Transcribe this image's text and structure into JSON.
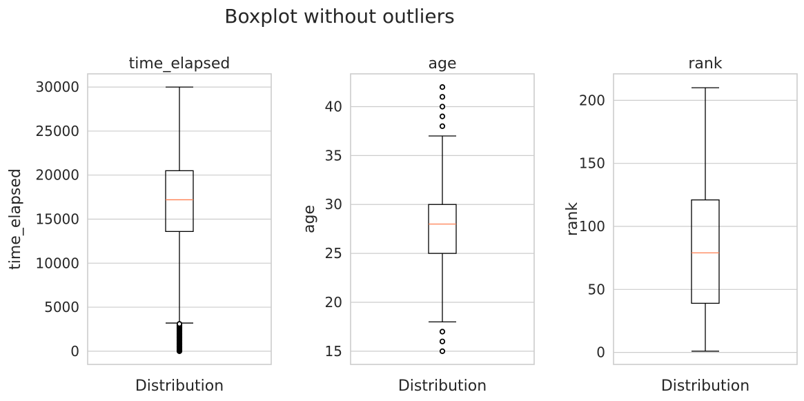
{
  "suptitle": "Boxplot without outliers",
  "chart_data": [
    {
      "type": "boxplot",
      "title": "time_elapsed",
      "ylabel": "time_elapsed",
      "xlabel": "Distribution",
      "ylim": [
        -1500,
        31500
      ],
      "yticks": [
        0,
        5000,
        10000,
        15000,
        20000,
        25000,
        30000
      ],
      "box": {
        "whisker_low": 3200,
        "q1": 13600,
        "median": 17200,
        "q3": 20500,
        "whisker_high": 30000
      },
      "fliers": [
        0,
        100,
        200,
        300,
        400,
        500,
        600,
        700,
        800,
        900,
        1000,
        1100,
        1200,
        1300,
        1400,
        1500,
        1600,
        1700,
        1800,
        1900,
        2000,
        2100,
        2200,
        2300,
        2400,
        2500,
        2600,
        2700,
        2800,
        2900,
        3000,
        3100
      ],
      "grid": true
    },
    {
      "type": "boxplot",
      "title": "age",
      "ylabel": "age",
      "xlabel": "Distribution",
      "ylim": [
        13.65,
        43.35
      ],
      "yticks": [
        15,
        20,
        25,
        30,
        35,
        40
      ],
      "box": {
        "whisker_low": 18,
        "q1": 25,
        "median": 28,
        "q3": 30,
        "whisker_high": 37
      },
      "fliers": [
        15,
        16,
        17,
        38,
        39,
        40,
        41,
        42
      ],
      "grid": true
    },
    {
      "type": "boxplot",
      "title": "rank",
      "ylabel": "rank",
      "xlabel": "Distribution",
      "ylim": [
        -9.5,
        221
      ],
      "yticks": [
        0,
        50,
        100,
        150,
        200
      ],
      "box": {
        "whisker_low": 1,
        "q1": 39,
        "median": 79,
        "q3": 121,
        "whisker_high": 210
      },
      "fliers": [],
      "grid": true
    }
  ]
}
